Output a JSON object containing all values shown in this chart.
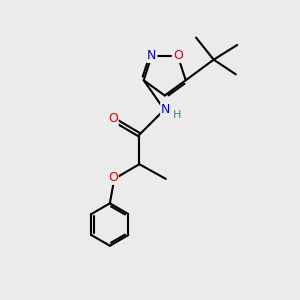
{
  "bg_color": "#ebebeb",
  "atom_colors": {
    "C": "#000000",
    "N": "#0000cc",
    "O": "#dd0000",
    "H": "#408080"
  },
  "bond_color": "#000000",
  "bond_width": 1.5,
  "dbo": 0.055
}
